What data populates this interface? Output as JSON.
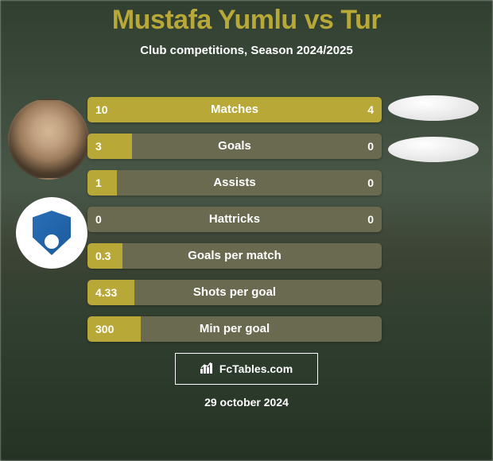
{
  "header": {
    "title": "Mustafa Yumlu vs Tur",
    "subtitle": "Club competitions, Season 2024/2025"
  },
  "colors": {
    "accent": "#b8a838",
    "bar_bg": "#6a6a50",
    "text": "#ffffff"
  },
  "avatars": {
    "player1_name": "mustafa-yumlu",
    "club_name": "erzurumspor",
    "player2_name": "tur"
  },
  "bars": [
    {
      "label": "Matches",
      "left": "10",
      "right": "4",
      "left_pct": 71,
      "right_pct": 29
    },
    {
      "label": "Goals",
      "left": "3",
      "right": "0",
      "left_pct": 15,
      "right_pct": 0
    },
    {
      "label": "Assists",
      "left": "1",
      "right": "0",
      "left_pct": 10,
      "right_pct": 0
    },
    {
      "label": "Hattricks",
      "left": "0",
      "right": "0",
      "left_pct": 0,
      "right_pct": 0
    },
    {
      "label": "Goals per match",
      "left": "0.3",
      "right": "",
      "left_pct": 12,
      "right_pct": 0
    },
    {
      "label": "Shots per goal",
      "left": "4.33",
      "right": "",
      "left_pct": 16,
      "right_pct": 0
    },
    {
      "label": "Min per goal",
      "left": "300",
      "right": "",
      "left_pct": 18,
      "right_pct": 0
    }
  ],
  "watermark": {
    "label": "FcTables.com"
  },
  "footer": {
    "date": "29 october 2024"
  }
}
